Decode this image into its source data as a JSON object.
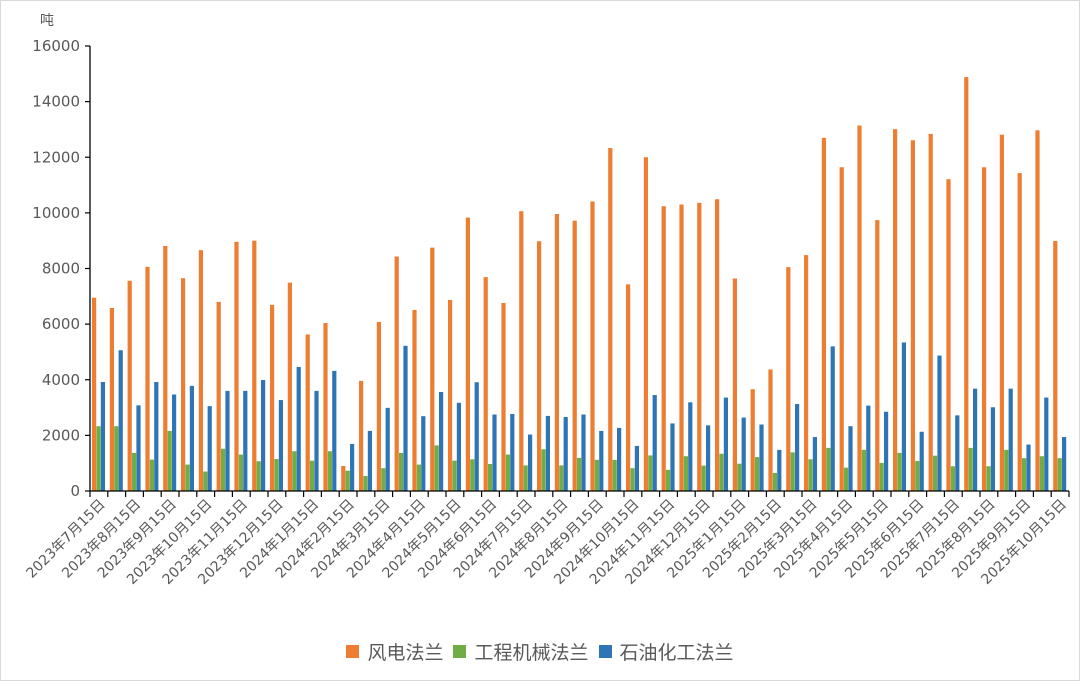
{
  "chart_data": {
    "type": "bar",
    "title": "",
    "ylabel": "吨",
    "xlabel": "",
    "ylim": [
      0,
      16000
    ],
    "yticks": [
      0,
      2000,
      4000,
      6000,
      8000,
      10000,
      12000,
      14000,
      16000
    ],
    "grid": false,
    "legend_position": "bottom",
    "categories": [
      "2023年7月15日",
      "",
      "2023年8月15日",
      "",
      "2023年9月15日",
      "",
      "2023年10月15日",
      "",
      "2023年11月15日",
      "",
      "2023年12月15日",
      "",
      "2024年1月15日",
      "",
      "2024年2月15日",
      "",
      "2024年3月15日",
      "",
      "2024年4月15日",
      "",
      "2024年5月15日",
      "",
      "2024年6月15日",
      "",
      "2024年7月15日",
      "",
      "2024年8月15日",
      "",
      "2024年9月15日",
      "",
      "2024年10月15日",
      "",
      "2024年11月15日",
      "",
      "2024年12月15日",
      "",
      "2025年1月15日",
      "",
      "2025年2月15日",
      "",
      "2025年3月15日",
      "",
      "2025年4月15日",
      "",
      "2025年5月15日",
      "",
      "2025年6月15日",
      "",
      "2025年7月15日",
      "",
      "2025年8月15日",
      "",
      "2025年9月15日",
      "",
      "2025年10月15日"
    ],
    "series": [
      {
        "name": "风电法兰",
        "color": "#ED7D31",
        "values": [
          6950,
          6580,
          7560,
          8060,
          8810,
          7650,
          8660,
          6800,
          8960,
          9000,
          6690,
          7490,
          5630,
          6040,
          900,
          3960,
          6080,
          8430,
          6510,
          8750,
          6870,
          9830,
          7690,
          6760,
          10060,
          8980,
          9960,
          9720,
          10410,
          12330,
          7430,
          12000,
          10240,
          10300,
          10360,
          10490,
          7640,
          3660,
          4370,
          8050,
          8480,
          12700,
          11640,
          13140,
          9740,
          13010,
          12610,
          12840,
          11210,
          14880,
          11640,
          12810,
          11430,
          12970,
          8990
        ]
      },
      {
        "name": "工程机械法兰",
        "color": "#70AD47",
        "values": [
          2330,
          2330,
          1370,
          1130,
          2160,
          950,
          700,
          1520,
          1310,
          1070,
          1150,
          1430,
          1090,
          1430,
          730,
          540,
          820,
          1370,
          950,
          1640,
          1090,
          1140,
          970,
          1310,
          920,
          1500,
          920,
          1190,
          1120,
          1120,
          820,
          1280,
          760,
          1250,
          910,
          1340,
          980,
          1220,
          650,
          1390,
          1140,
          1550,
          840,
          1480,
          1010,
          1370,
          1080,
          1270,
          890,
          1550,
          890,
          1480,
          1180,
          1250,
          1180
        ]
      },
      {
        "name": "石油化工法兰",
        "color": "#2E75B6",
        "values": [
          3920,
          5060,
          3080,
          3920,
          3470,
          3780,
          3050,
          3600,
          3600,
          3990,
          3270,
          4460,
          3600,
          4320,
          1690,
          2160,
          2990,
          5220,
          2690,
          3560,
          3170,
          3910,
          2750,
          2770,
          2030,
          2700,
          2660,
          2750,
          2160,
          2270,
          1620,
          3450,
          2430,
          3190,
          2360,
          3360,
          2640,
          2390,
          1480,
          3130,
          1940,
          5200,
          2330,
          3070,
          2850,
          5340,
          2130,
          4870,
          2720,
          3680,
          3010,
          3680,
          1670,
          3360,
          1940
        ]
      }
    ]
  }
}
